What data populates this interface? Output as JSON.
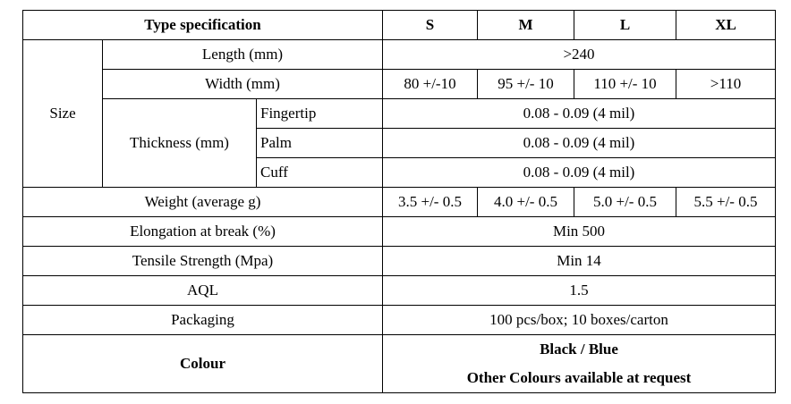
{
  "header": {
    "title": "Type specification",
    "sizes": [
      "S",
      "M",
      "L",
      "XL"
    ]
  },
  "size_group": {
    "label": "Size",
    "length": {
      "label": "Length (mm)",
      "value": ">240"
    },
    "width": {
      "label": "Width (mm)",
      "values": [
        "80 +/-10",
        "95 +/- 10",
        "110 +/- 10",
        ">110"
      ]
    },
    "thickness": {
      "label": "Thickness (mm)",
      "rows": [
        {
          "part": "Fingertip",
          "value": "0.08 - 0.09 (4 mil)"
        },
        {
          "part": "Palm",
          "value": "0.08 - 0.09 (4 mil)"
        },
        {
          "part": "Cuff",
          "value": "0.08 - 0.09 (4 mil)"
        }
      ]
    }
  },
  "weight": {
    "label": "Weight (average g)",
    "values": [
      "3.5 +/- 0.5",
      "4.0 +/- 0.5",
      "5.0 +/- 0.5",
      "5.5 +/- 0.5"
    ]
  },
  "elongation": {
    "label": "Elongation at break (%)",
    "value": "Min 500"
  },
  "tensile": {
    "label": "Tensile Strength (Mpa)",
    "value": "Min 14"
  },
  "aql": {
    "label": "AQL",
    "value": "1.5"
  },
  "packaging": {
    "label": "Packaging",
    "value": "100 pcs/box; 10 boxes/carton"
  },
  "colour": {
    "label": "Colour",
    "line1": "Black / Blue",
    "line2": "Other Colours available at request"
  }
}
